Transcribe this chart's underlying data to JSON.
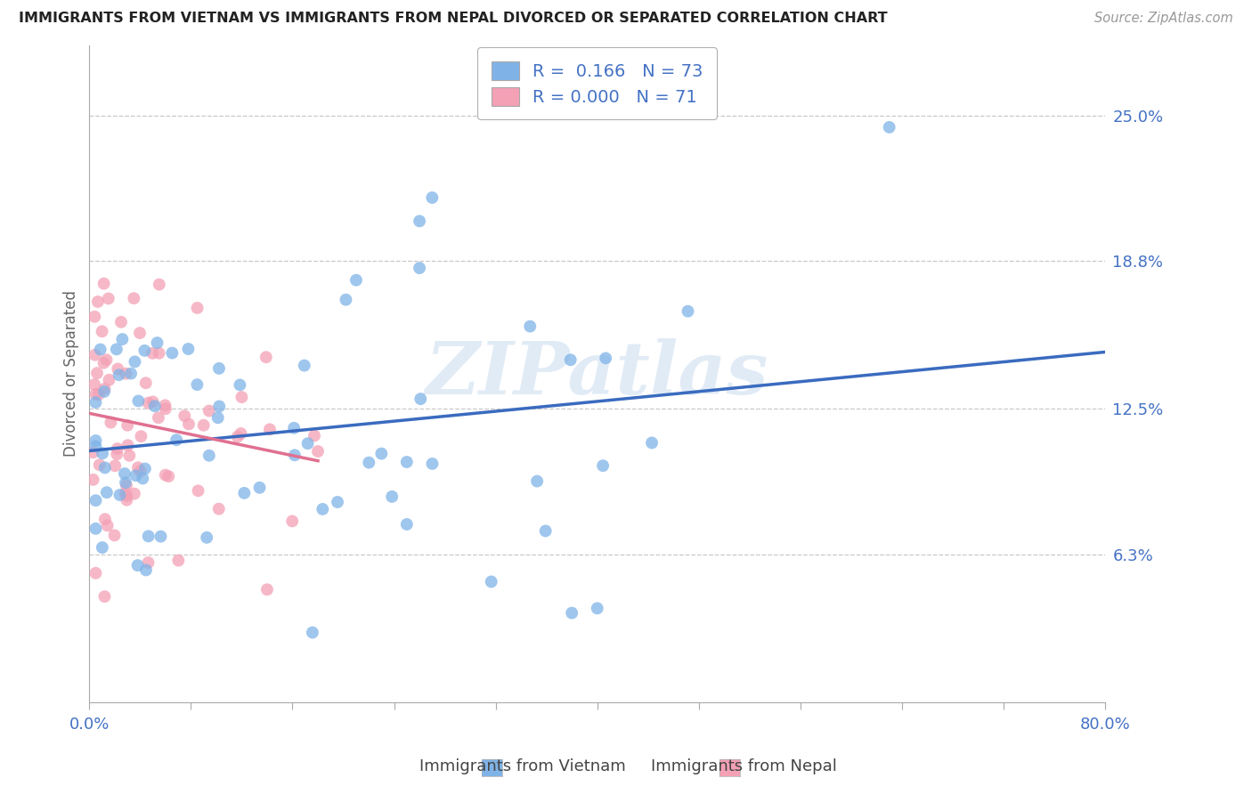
{
  "title": "IMMIGRANTS FROM VIETNAM VS IMMIGRANTS FROM NEPAL DIVORCED OR SEPARATED CORRELATION CHART",
  "source": "Source: ZipAtlas.com",
  "xlabel_vietnam": "Immigrants from Vietnam",
  "xlabel_nepal": "Immigrants from Nepal",
  "ylabel": "Divorced or Separated",
  "xlim": [
    0.0,
    0.8
  ],
  "ylim": [
    0.0,
    0.28
  ],
  "ytick_labels_right": [
    "6.3%",
    "12.5%",
    "18.8%",
    "25.0%"
  ],
  "ytick_vals_right": [
    0.063,
    0.125,
    0.188,
    0.25
  ],
  "color_vietnam": "#7fb3e8",
  "color_nepal": "#f4a0b5",
  "color_trend_vietnam": "#3a6bbf",
  "color_trend_nepal": "#e07090",
  "R_vietnam": 0.166,
  "N_vietnam": 73,
  "R_nepal": 0.0,
  "N_nepal": 71,
  "watermark": "ZIPatlas",
  "seed": 12
}
